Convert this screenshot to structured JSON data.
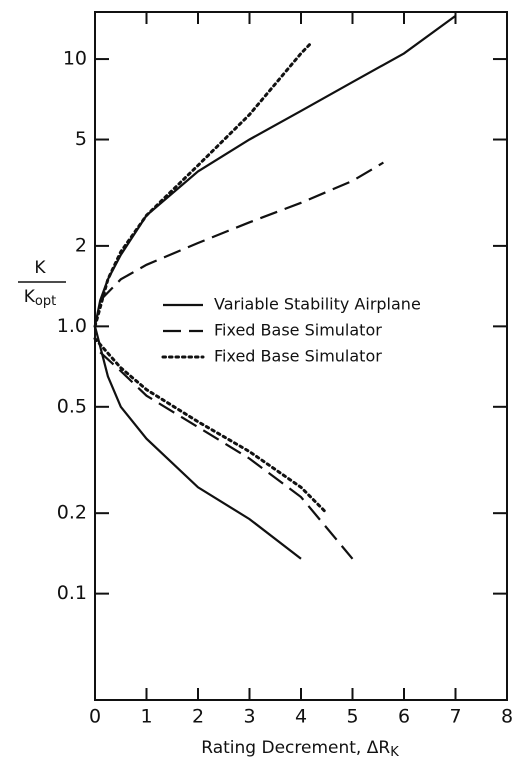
{
  "chart_data": {
    "type": "line",
    "log_y": true,
    "x_label": "Rating Decrement, ΔR",
    "x_label_sub": "K",
    "y_label": {
      "numerator": "K",
      "denominator": "K",
      "denominator_sub": "opt"
    },
    "xlim": [
      0,
      8
    ],
    "xticks": [
      0,
      1,
      2,
      3,
      4,
      5,
      6,
      7,
      8
    ],
    "ylim": [
      0.04,
      15
    ],
    "yticks": [
      0.1,
      0.2,
      0.5,
      {
        "value": 1,
        "label": "1.0"
      },
      2,
      5,
      10
    ],
    "color": "#111",
    "series": [
      {
        "name": "Variable Stability Airplane",
        "dash": "solid",
        "branches": [
          {
            "x": [
              0,
              0.1,
              0.25,
              0.5,
              1,
              2,
              3,
              4,
              5,
              6,
              7
            ],
            "y": [
              1,
              1.25,
              1.5,
              1.85,
              2.6,
              3.8,
              5,
              6.4,
              8.2,
              10.5,
              14.5
            ]
          },
          {
            "x": [
              0,
              0.25,
              0.5,
              1,
              2,
              3,
              4
            ],
            "y": [
              1,
              0.65,
              0.5,
              0.38,
              0.25,
              0.19,
              0.135
            ]
          }
        ]
      },
      {
        "name": "Fixed Base Simulator",
        "dash": "dashed",
        "branches": [
          {
            "x": [
              0.1,
              0.5,
              1,
              2,
              3,
              4,
              5,
              5.6
            ],
            "y": [
              1.25,
              1.5,
              1.7,
              2.05,
              2.45,
              2.9,
              3.5,
              4.1
            ]
          },
          {
            "x": [
              0.1,
              0.5,
              1,
              2,
              3,
              4,
              5
            ],
            "y": [
              0.8,
              0.68,
              0.55,
              0.42,
              0.32,
              0.23,
              0.135
            ]
          }
        ]
      },
      {
        "name": "Fixed Base Simulator",
        "dash": "dotted",
        "branches": [
          {
            "x": [
              0,
              0.25,
              0.5,
              1,
              2,
              3,
              4,
              4.2
            ],
            "y": [
              1,
              1.5,
              1.9,
              2.6,
              4,
              6.2,
              10.5,
              11.5
            ]
          },
          {
            "x": [
              0,
              0.5,
              1,
              2,
              3,
              4,
              4.5
            ],
            "y": [
              0.9,
              0.7,
              0.58,
              0.44,
              0.34,
              0.25,
              0.2
            ]
          }
        ]
      }
    ]
  }
}
